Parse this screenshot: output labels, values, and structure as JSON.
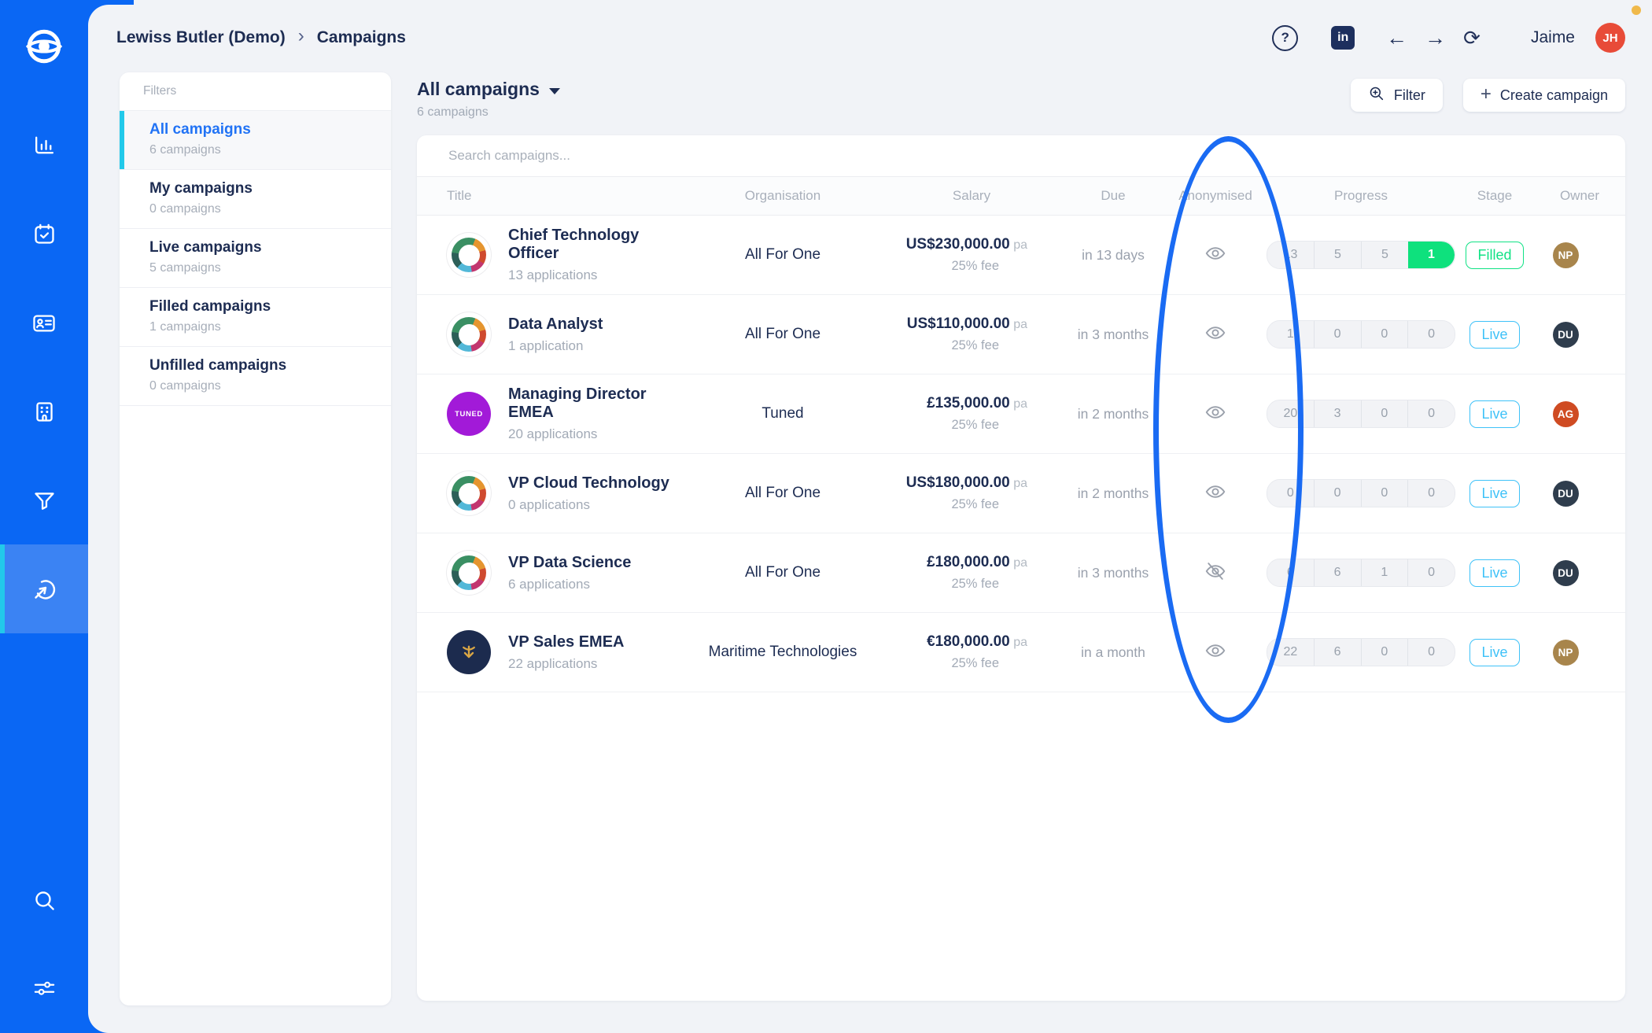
{
  "topbar": {
    "breadcrumb": [
      "Lewiss Butler (Demo)",
      "Campaigns"
    ],
    "help_glyph": "?",
    "linkedin_label": "in",
    "back_glyph": "←",
    "forward_glyph": "→",
    "refresh_glyph": "⟳",
    "user_name": "Jaime",
    "user_initials": "JH",
    "user_avatar_color": "#e84b38",
    "icons": [
      "help-icon",
      "linkedin-icon",
      "back-arrow-icon",
      "forward-arrow-icon",
      "refresh-icon"
    ]
  },
  "sidebar": {
    "icons": [
      "app-logo-eye-icon",
      "analytics-icon",
      "calendar-icon",
      "candidates-icon",
      "companies-icon",
      "pipeline-funnel-icon",
      "campaigns-icon",
      "search-icon",
      "settings-sliders-icon"
    ],
    "active_item": "campaigns",
    "colors": {
      "background": "#0a67f4",
      "active_background": "#3b83f3",
      "active_indicator": "#22c9ea"
    }
  },
  "filters": {
    "title": "Filters",
    "items": [
      {
        "label": "All campaigns",
        "count": "6 campaigns",
        "active": true
      },
      {
        "label": "My campaigns",
        "count": "0 campaigns",
        "active": false
      },
      {
        "label": "Live campaigns",
        "count": "5 campaigns",
        "active": false
      },
      {
        "label": "Filled campaigns",
        "count": "1 campaigns",
        "active": false
      },
      {
        "label": "Unfilled campaigns",
        "count": "0 campaigns",
        "active": false
      }
    ]
  },
  "header": {
    "title": "All campaigns",
    "subtitle": "6 campaigns",
    "filter_button": "Filter",
    "create_button": "Create campaign",
    "create_plus_glyph": "+"
  },
  "search": {
    "placeholder": "Search campaigns..."
  },
  "table": {
    "columns": [
      "Title",
      "Organisation",
      "Salary",
      "Due",
      "Anonymised",
      "Progress",
      "Stage",
      "Owner"
    ],
    "rows": [
      {
        "title": "Chief Technology Officer",
        "applications": "13 applications",
        "org": "All For One",
        "org_logo": "all-for-one",
        "salary": "US$230,000.00",
        "salary_suffix": "pa",
        "fee": "25% fee",
        "due": "in 13 days",
        "anonymised_icon": "eye",
        "progress": [
          "13",
          "5",
          "5",
          "1"
        ],
        "progress_last_green": true,
        "stage": "Filled",
        "stage_color": "green",
        "owner": "NP",
        "owner_color": "#a8854c"
      },
      {
        "title": "Data Analyst",
        "applications": "1 application",
        "org": "All For One",
        "org_logo": "all-for-one",
        "salary": "US$110,000.00",
        "salary_suffix": "pa",
        "fee": "25% fee",
        "due": "in 3 months",
        "anonymised_icon": "eye",
        "progress": [
          "1",
          "0",
          "0",
          "0"
        ],
        "progress_last_green": false,
        "stage": "Live",
        "stage_color": "blue",
        "owner": "DU",
        "owner_color": "#2f3d4d"
      },
      {
        "title": "Managing Director EMEA",
        "applications": "20 applications",
        "org": "Tuned",
        "org_logo": "tuned",
        "salary": "£135,000.00",
        "salary_suffix": "pa",
        "fee": "25% fee",
        "due": "in 2 months",
        "anonymised_icon": "eye",
        "progress": [
          "20",
          "3",
          "0",
          "0"
        ],
        "progress_last_green": false,
        "stage": "Live",
        "stage_color": "blue",
        "owner": "AG",
        "owner_color": "#cf4b22"
      },
      {
        "title": "VP Cloud Technology",
        "applications": "0 applications",
        "org": "All For One",
        "org_logo": "all-for-one",
        "salary": "US$180,000.00",
        "salary_suffix": "pa",
        "fee": "25% fee",
        "due": "in 2 months",
        "anonymised_icon": "eye",
        "progress": [
          "0",
          "0",
          "0",
          "0"
        ],
        "progress_last_green": false,
        "stage": "Live",
        "stage_color": "blue",
        "owner": "DU",
        "owner_color": "#2f3d4d"
      },
      {
        "title": "VP Data Science",
        "applications": "6 applications",
        "org": "All For One",
        "org_logo": "all-for-one",
        "salary": "£180,000.00",
        "salary_suffix": "pa",
        "fee": "25% fee",
        "due": "in 3 months",
        "anonymised_icon": "eye-off",
        "progress": [
          "6",
          "6",
          "1",
          "0"
        ],
        "progress_last_green": false,
        "stage": "Live",
        "stage_color": "blue",
        "owner": "DU",
        "owner_color": "#2f3d4d"
      },
      {
        "title": "VP Sales EMEA",
        "applications": "22 applications",
        "org": "Maritime Technologies",
        "org_logo": "maritime",
        "salary": "€180,000.00",
        "salary_suffix": "pa",
        "fee": "25% fee",
        "due": "in a month",
        "anonymised_icon": "eye",
        "progress": [
          "22",
          "6",
          "0",
          "0"
        ],
        "progress_last_green": false,
        "stage": "Live",
        "stage_color": "blue",
        "owner": "NP",
        "owner_color": "#a8854c"
      }
    ]
  },
  "logos": {
    "tuned_text": "TUNED"
  },
  "annotation": {
    "shape": "ellipse",
    "target": "Anonymised column",
    "color": "#1a6bf3"
  },
  "colors": {
    "stage_green": "#10e285",
    "stage_blue": "#3fc2f8",
    "progress_green": "#0ee17d",
    "accent_blue": "#2173f5",
    "navy_text": "#1d2c52"
  }
}
